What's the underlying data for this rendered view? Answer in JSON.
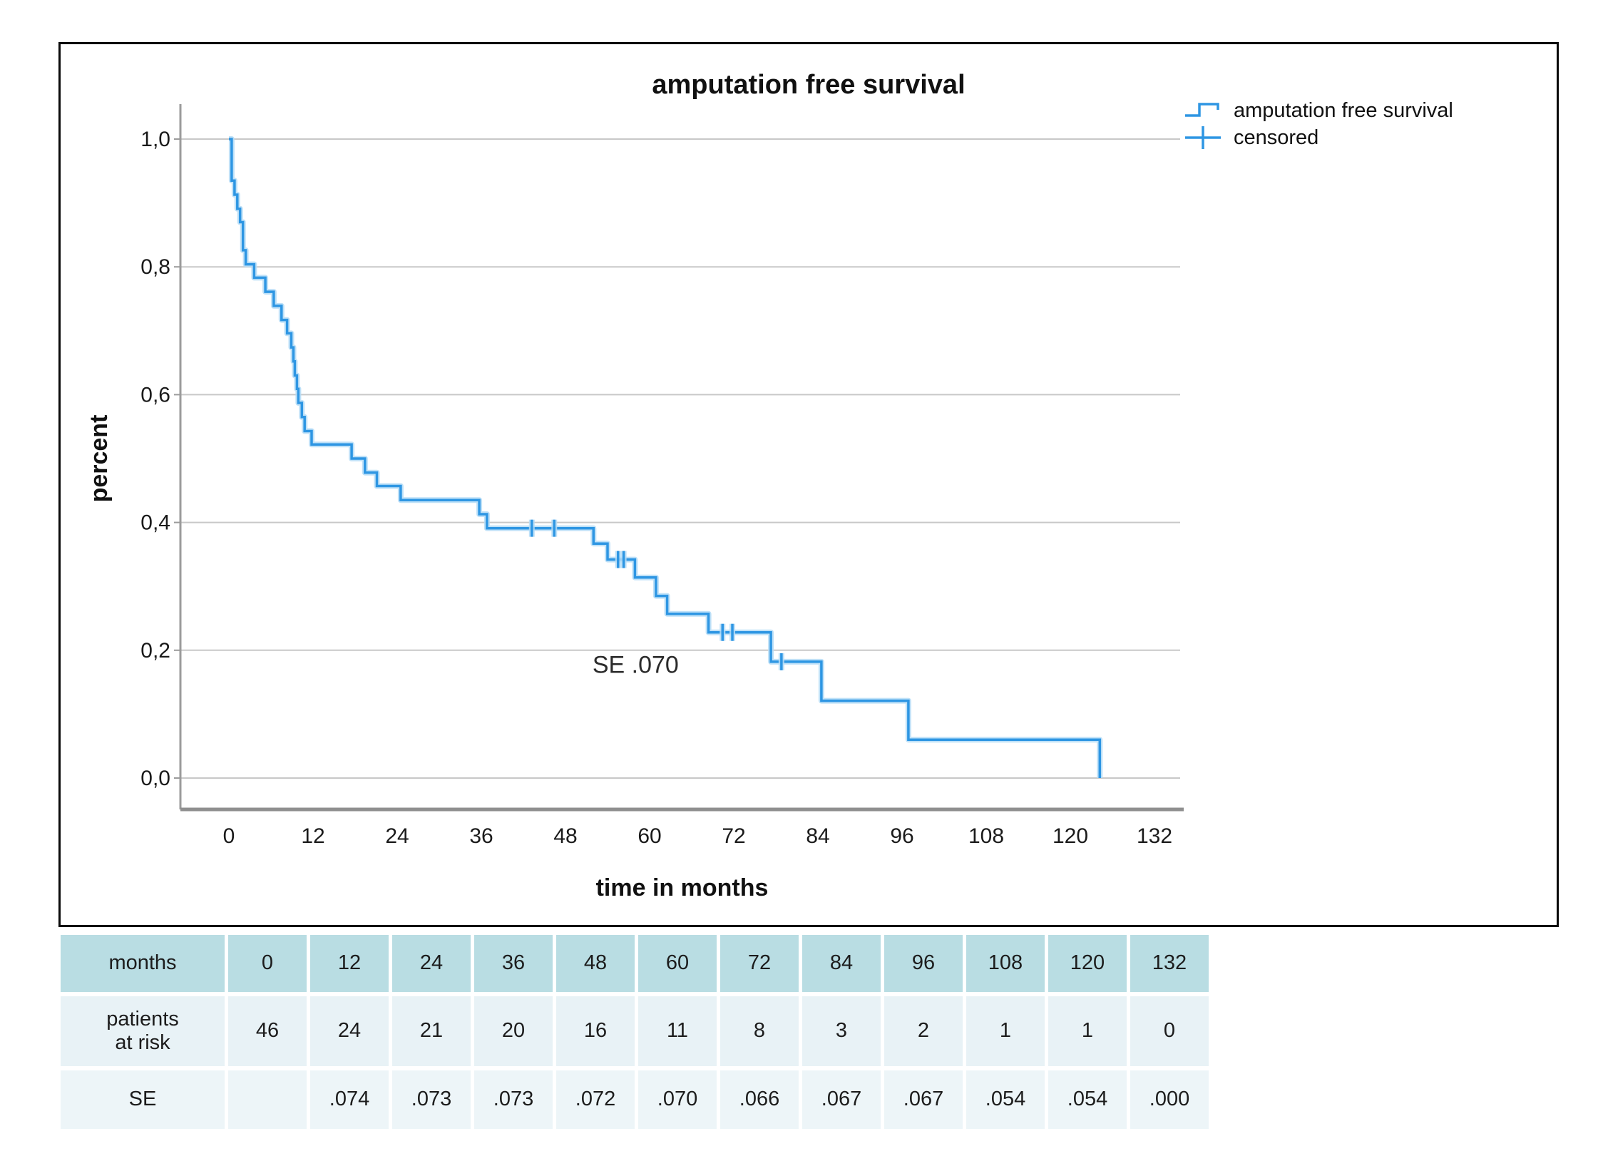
{
  "title": "amputation free survival",
  "legend": {
    "series_label": "amputation free survival",
    "censored_label": "censored"
  },
  "annotation_text": "SE .070",
  "colors": {
    "curve": "#2e96e3",
    "curve_halo": "#b4dcf7",
    "grid": "#c8c8c8",
    "y_axis": "#9b9b9b",
    "x_axis_base": "#8f8f8f",
    "frame": "#0a0a0a",
    "text": "#1a1a1a",
    "table_header_bg": "#b9dde3",
    "table_row1_bg": "#e8f2f6",
    "table_row2_bg": "#edf5f8"
  },
  "chart_data": {
    "type": "line",
    "subtype": "kaplan-meier-step-function",
    "title": "amputation free survival",
    "xlabel": "time in months",
    "ylabel": "percent",
    "x_ticks": [
      0,
      12,
      24,
      36,
      48,
      60,
      72,
      84,
      96,
      108,
      120,
      132
    ],
    "y_ticks": [
      {
        "value": 1.0,
        "label": "1,0"
      },
      {
        "value": 0.8,
        "label": "0,8"
      },
      {
        "value": 0.6,
        "label": "0,6"
      },
      {
        "value": 0.4,
        "label": "0,4"
      },
      {
        "value": 0.2,
        "label": "0,2"
      },
      {
        "value": 0.0,
        "label": "0,0"
      }
    ],
    "xlim": [
      0,
      132
    ],
    "ylim": [
      0.0,
      1.0
    ],
    "grid": "horizontal",
    "legend_position": "top-right",
    "series": [
      {
        "name": "amputation free survival",
        "steps": [
          [
            0,
            1.0
          ],
          [
            0.4,
            0.935
          ],
          [
            0.8,
            0.913
          ],
          [
            1.2,
            0.891
          ],
          [
            1.6,
            0.87
          ],
          [
            2.0,
            0.826
          ],
          [
            2.4,
            0.804
          ],
          [
            3.6,
            0.783
          ],
          [
            5.2,
            0.761
          ],
          [
            6.4,
            0.739
          ],
          [
            7.5,
            0.717
          ],
          [
            8.3,
            0.696
          ],
          [
            8.9,
            0.674
          ],
          [
            9.2,
            0.652
          ],
          [
            9.4,
            0.63
          ],
          [
            9.7,
            0.609
          ],
          [
            9.9,
            0.587
          ],
          [
            10.4,
            0.565
          ],
          [
            10.8,
            0.543
          ],
          [
            11.8,
            0.522
          ],
          [
            17.5,
            0.5
          ],
          [
            19.4,
            0.478
          ],
          [
            21.1,
            0.457
          ],
          [
            24.5,
            0.435
          ],
          [
            35.7,
            0.413
          ],
          [
            36.8,
            0.391
          ],
          [
            52.0,
            0.367
          ],
          [
            54.0,
            0.342
          ],
          [
            57.9,
            0.314
          ],
          [
            60.9,
            0.285
          ],
          [
            62.5,
            0.257
          ],
          [
            68.4,
            0.228
          ],
          [
            77.3,
            0.182
          ],
          [
            84.5,
            0.121
          ],
          [
            96.9,
            0.06
          ],
          [
            124.2,
            0.0
          ]
        ]
      }
    ],
    "censored_marks": [
      [
        43.2,
        0.391
      ],
      [
        46.4,
        0.391
      ],
      [
        55.5,
        0.342
      ],
      [
        56.3,
        0.342
      ],
      [
        70.4,
        0.228
      ],
      [
        71.8,
        0.228
      ],
      [
        78.8,
        0.182
      ]
    ],
    "annotation": {
      "text": "SE .070",
      "x_months": 58,
      "value": 0.178
    }
  },
  "table": {
    "rows": [
      {
        "label": "months",
        "values": [
          "0",
          "12",
          "24",
          "36",
          "48",
          "60",
          "72",
          "84",
          "96",
          "108",
          "120",
          "132"
        ]
      },
      {
        "label": "patients\nat risk",
        "values": [
          "46",
          "24",
          "21",
          "20",
          "16",
          "11",
          "8",
          "3",
          "2",
          "1",
          "1",
          "0"
        ]
      },
      {
        "label": "SE",
        "values": [
          "",
          ".074",
          ".073",
          ".073",
          ".072",
          ".070",
          ".066",
          ".067",
          ".067",
          ".054",
          ".054",
          ".000"
        ]
      }
    ]
  }
}
